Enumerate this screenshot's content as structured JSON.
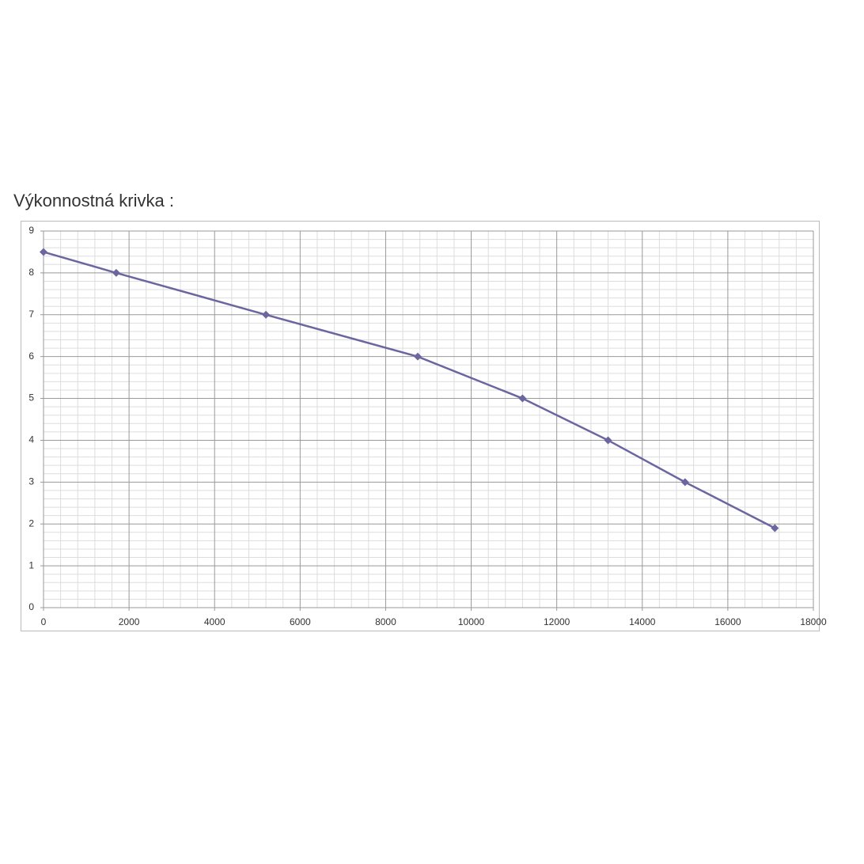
{
  "chart_data": {
    "type": "line",
    "title": "Výkonnostná krivka :",
    "x": [
      0,
      1700,
      5200,
      8750,
      11200,
      13200,
      15000,
      17100
    ],
    "series": [
      {
        "color": "#6b66a0",
        "values": [
          8.5,
          8,
          7,
          6,
          5,
          4,
          3,
          1.9
        ]
      }
    ],
    "xlim": [
      0,
      18000
    ],
    "xticks": [
      0,
      2000,
      4000,
      6000,
      8000,
      10000,
      12000,
      14000,
      16000,
      18000
    ],
    "ylim": [
      0,
      9
    ],
    "yticks": [
      0,
      1,
      2,
      3,
      4,
      5,
      6,
      7,
      8,
      9
    ],
    "grid": true,
    "minor_grid": true
  }
}
